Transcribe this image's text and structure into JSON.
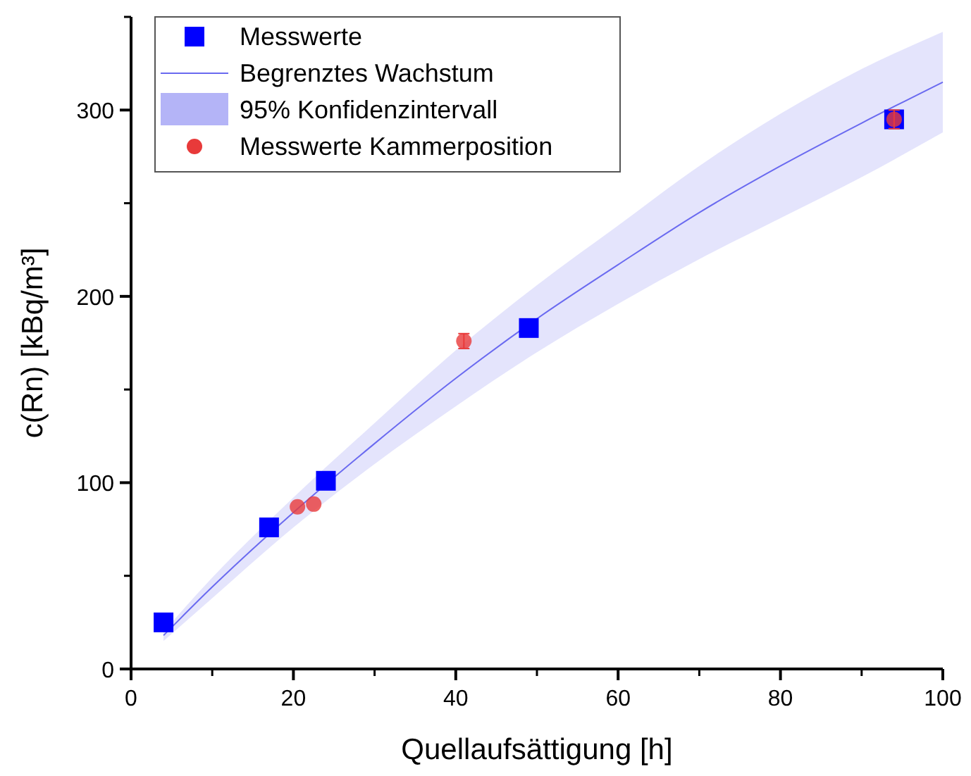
{
  "chart_data": {
    "type": "scatter",
    "xlabel": "Quellaufsättigung [h]",
    "ylabel": "c(Rn) [kBq/m³]",
    "xlim": [
      0,
      100
    ],
    "ylim": [
      0,
      350
    ],
    "xticks": [
      0,
      20,
      40,
      60,
      80,
      100
    ],
    "yticks": [
      0,
      100,
      200,
      300
    ],
    "grid": false,
    "legend": "top left",
    "annotations": [
      "95% Konfidenzintervall"
    ],
    "series": [
      {
        "name": "Begrenztes Wachstum",
        "type": "line",
        "color": "#6a6af0",
        "line_style": "solid",
        "x": [
          4,
          10,
          20,
          30,
          40,
          50,
          60,
          70,
          80,
          90,
          100
        ],
        "values": [
          18,
          44,
          84,
          121,
          156,
          188,
          217,
          245,
          270,
          293,
          315
        ],
        "lower": [
          15,
          38,
          76,
          110,
          141,
          170,
          196,
          220,
          242,
          264,
          288
        ],
        "upper": [
          20,
          49,
          92,
          132,
          171,
          206,
          238,
          270,
          298,
          322,
          342
        ]
      },
      {
        "name": "Messwerte",
        "marker": "square",
        "color": "#0000ff",
        "x": [
          4,
          17,
          24,
          49,
          94
        ],
        "values": [
          25,
          76,
          101,
          183,
          295
        ]
      },
      {
        "name": "Messwerte Kammerposition",
        "marker": "circle",
        "color": "#e83a3a",
        "x": [
          20.5,
          22.5,
          41,
          94
        ],
        "values": [
          87,
          88.5,
          176,
          295
        ],
        "errors": [
          null,
          null,
          4,
          5
        ]
      }
    ]
  }
}
